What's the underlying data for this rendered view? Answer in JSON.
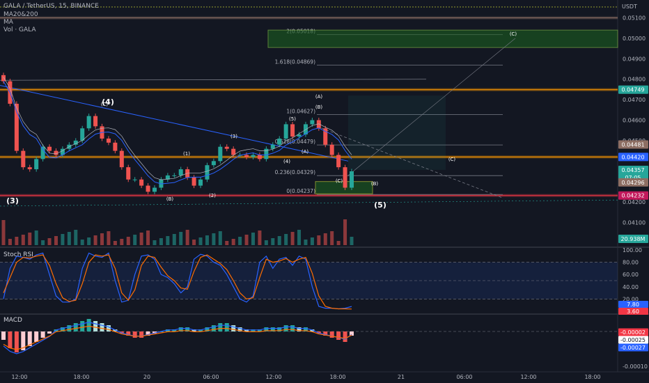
{
  "header": {
    "symbol_line": "GALA / TetherUS, 15, BINANCE",
    "indicators": [
      "MA20&200",
      "MA",
      "Vol · GALA"
    ],
    "currency": "USDT"
  },
  "price_axis": {
    "ticks": [
      "0.05100",
      "0.05000",
      "0.04900",
      "0.04800",
      "0.04700",
      "0.04600",
      "0.04500",
      "0.04200",
      "0.04100"
    ],
    "tags": [
      {
        "label": "0.04749",
        "color": "#26a69a"
      },
      {
        "label": "0.04481",
        "color": "#8d6e63"
      },
      {
        "label": "0.04420",
        "color": "#2962ff"
      },
      {
        "label": "0.04357",
        "color": "#26a69a"
      },
      {
        "label": "07:05",
        "color": "#26a69a"
      },
      {
        "label": "0.04296",
        "color": "#8d6e63"
      },
      {
        "label": "0.04232",
        "color": "#c2185b"
      }
    ],
    "volume_tag": {
      "label": "20.938M",
      "color": "#26a69a"
    }
  },
  "fib_levels": [
    {
      "label": "2(0.05018)"
    },
    {
      "label": "1.618(0.04869)"
    },
    {
      "label": "1(0.04627)"
    },
    {
      "label": "0.618(0.04479)"
    },
    {
      "label": "0.236(0.04329)"
    },
    {
      "label": "0(0.04237)"
    }
  ],
  "wave_labels": [
    "(4)",
    "(3)",
    "(5)",
    "(1)",
    "(2)",
    "(3)",
    "(4)",
    "(5)",
    "(A)",
    "(B)",
    "(C)",
    "(A)",
    "(B)",
    "(B)",
    "(C)",
    "(C)",
    "(C)"
  ],
  "stoch_rsi": {
    "title": "Stoch RSI",
    "ticks": [
      "100.00",
      "80.00",
      "60.00",
      "40.00",
      "20.00"
    ],
    "tags": [
      {
        "label": "7.80",
        "color": "#2962ff"
      },
      {
        "label": "3.60",
        "color": "#f23645"
      }
    ]
  },
  "macd": {
    "title": "MACD",
    "ticks": [
      "-0.00010"
    ],
    "tags": [
      {
        "label": "-0.00002",
        "color": "#f23645"
      },
      {
        "label": "-0.00025",
        "color": "#ffffff"
      },
      {
        "label": "-0.00027",
        "color": "#2962ff"
      }
    ]
  },
  "time_axis": [
    "12:00",
    "18:00",
    "20",
    "06:00",
    "12:00",
    "18:00",
    "21",
    "06:00",
    "12:00",
    "18:00"
  ],
  "colors": {
    "up": "#26a69a",
    "down": "#ef5350",
    "background": "#131722",
    "grid": "#2a2e39"
  },
  "chart_data": {
    "type": "candlestick",
    "symbol": "GALA/USDT",
    "interval": "15",
    "ylim": [
      0.0402,
      0.0517
    ],
    "fib_extension": [
      {
        "ratio": 2,
        "price": 0.05018
      },
      {
        "ratio": 1.618,
        "price": 0.04869
      },
      {
        "ratio": 1,
        "price": 0.04627
      },
      {
        "ratio": 0.618,
        "price": 0.04479
      },
      {
        "ratio": 0.236,
        "price": 0.04329
      },
      {
        "ratio": 0,
        "price": 0.04237
      }
    ],
    "close_series": [
      0.0479,
      0.0468,
      0.0445,
      0.0437,
      0.0436,
      0.0441,
      0.0447,
      0.0445,
      0.0443,
      0.0446,
      0.0448,
      0.045,
      0.0456,
      0.0462,
      0.0457,
      0.0451,
      0.0449,
      0.0445,
      0.0437,
      0.0431,
      0.0431,
      0.0428,
      0.0425,
      0.0427,
      0.0431,
      0.0433,
      0.0433,
      0.0436,
      0.0432,
      0.0428,
      0.0431,
      0.0438,
      0.044,
      0.0447,
      0.0446,
      0.0443,
      0.0443,
      0.0442,
      0.0443,
      0.0441,
      0.0446,
      0.0448,
      0.0451,
      0.0458,
      0.0452,
      0.0453,
      0.0458,
      0.046,
      0.0456,
      0.0448,
      0.0443,
      0.0437,
      0.0427,
      0.0435
    ],
    "stoch_k": [
      20,
      70,
      90,
      88,
      85,
      92,
      95,
      60,
      25,
      15,
      15,
      20,
      70,
      95,
      90,
      88,
      95,
      50,
      15,
      18,
      60,
      90,
      92,
      85,
      60,
      55,
      45,
      30,
      40,
      85,
      93,
      90,
      80,
      75,
      60,
      40,
      20,
      15,
      25,
      80,
      90,
      70,
      85,
      88,
      75,
      90,
      85,
      40,
      8,
      5,
      5,
      4,
      5,
      7.8
    ],
    "stoch_d": [
      30,
      55,
      80,
      88,
      87,
      90,
      92,
      75,
      45,
      22,
      16,
      18,
      45,
      80,
      92,
      90,
      92,
      70,
      30,
      18,
      35,
      75,
      90,
      88,
      72,
      58,
      50,
      38,
      36,
      65,
      88,
      92,
      85,
      78,
      68,
      50,
      30,
      20,
      22,
      55,
      85,
      80,
      82,
      86,
      80,
      85,
      88,
      62,
      25,
      8,
      5,
      4,
      4,
      3.6
    ],
    "macd_hist": [
      -4,
      -8,
      -10,
      -9,
      -7,
      -5,
      -3,
      -1,
      1,
      2,
      3,
      4,
      5,
      6,
      5,
      4,
      3,
      1,
      -1,
      -2,
      -3,
      -3,
      -2,
      -1,
      0,
      1,
      1,
      2,
      2,
      1,
      1,
      2,
      3,
      4,
      4,
      3,
      2,
      1,
      1,
      1,
      2,
      2,
      2,
      3,
      3,
      2,
      2,
      1,
      -1,
      -2,
      -3,
      -4,
      -5,
      -2
    ]
  }
}
